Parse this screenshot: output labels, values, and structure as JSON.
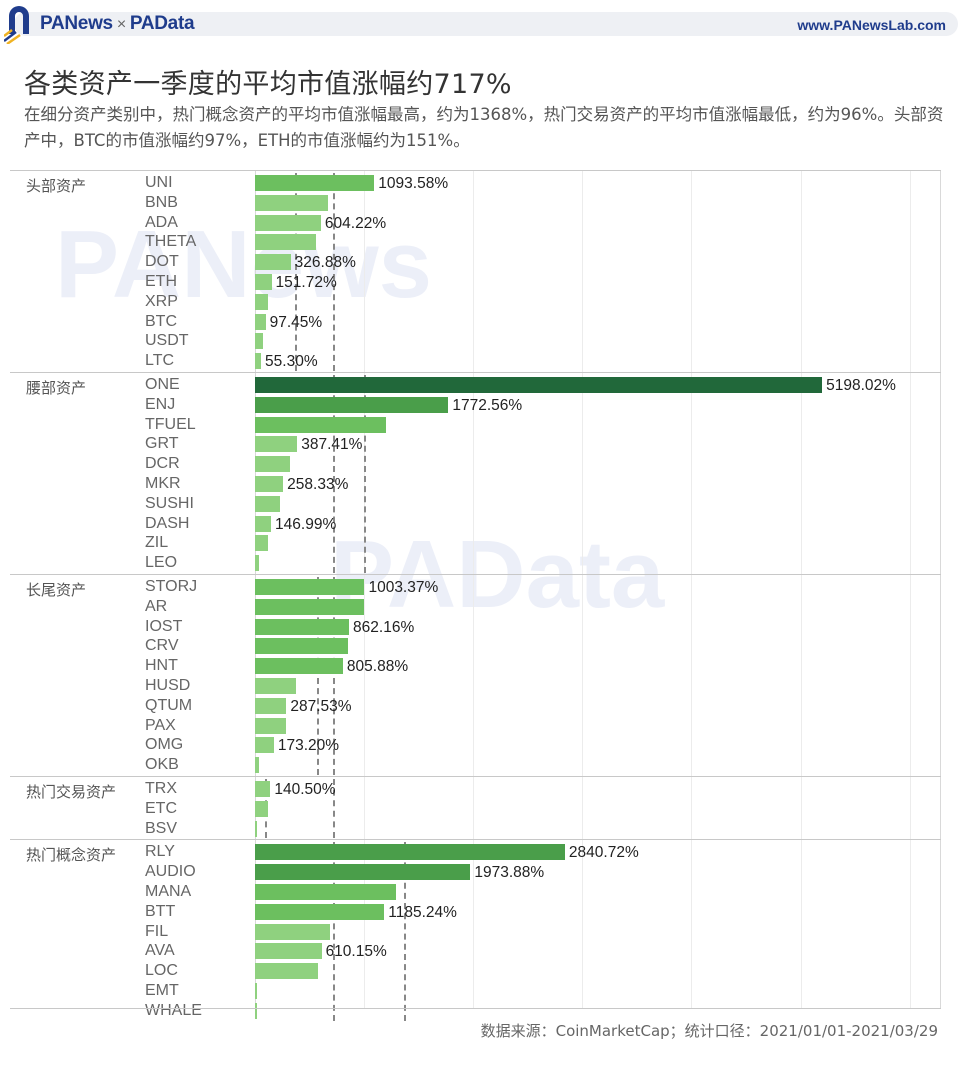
{
  "header": {
    "brand_left": "PANews",
    "brand_sep": "×",
    "brand_right": "PAData",
    "site": "www.PANewsLab.com"
  },
  "title": "各类资产一季度的平均市值涨幅约717%",
  "subtitle": "在细分资产类别中，热门概念资产的平均市值涨幅最高，约为1368%，热门交易资产的平均市值涨幅最低，约为96%。头部资产中，BTC的市值涨幅约97%，ETH的市值涨幅约为151%。",
  "source": "数据来源：CoinMarketCap；统计口径：2021/01/01-2021/03/29",
  "watermarks": [
    "PANews",
    "PAData"
  ],
  "colors": {
    "bar_light": "#8fd17f",
    "bar_mid": "#6cbf5f",
    "bar_dark": "#4a9e4a",
    "bar_darkest": "#21683a",
    "brand_blue": "#1f3c8c"
  },
  "chart_data": {
    "type": "bar",
    "orientation": "horizontal",
    "title": "各类资产一季度的平均市值涨幅约717%",
    "xlabel": "",
    "ylabel": "",
    "unit": "%",
    "xlim": [
      0,
      5900
    ],
    "grid": true,
    "groups": [
      {
        "name": "头部资产",
        "reference_lines": [
          367,
          717
        ],
        "items": [
          {
            "label": "UNI",
            "value": 1093.58,
            "shown_label": "1093.58%"
          },
          {
            "label": "BNB",
            "value": 670,
            "shown_label": ""
          },
          {
            "label": "ADA",
            "value": 604.22,
            "shown_label": "604.22%"
          },
          {
            "label": "THETA",
            "value": 555,
            "shown_label": ""
          },
          {
            "label": "DOT",
            "value": 326.88,
            "shown_label": "326.88%"
          },
          {
            "label": "ETH",
            "value": 151.72,
            "shown_label": "151.72%"
          },
          {
            "label": "XRP",
            "value": 120,
            "shown_label": ""
          },
          {
            "label": "BTC",
            "value": 97.45,
            "shown_label": "97.45%"
          },
          {
            "label": "USDT",
            "value": 75,
            "shown_label": ""
          },
          {
            "label": "LTC",
            "value": 55.3,
            "shown_label": "55.30%"
          }
        ]
      },
      {
        "name": "腰部资产",
        "reference_lines": [
          717,
          1000
        ],
        "items": [
          {
            "label": "ONE",
            "value": 5198.02,
            "shown_label": "5198.02%"
          },
          {
            "label": "ENJ",
            "value": 1772.56,
            "shown_label": "1772.56%"
          },
          {
            "label": "TFUEL",
            "value": 1200,
            "shown_label": ""
          },
          {
            "label": "GRT",
            "value": 387.41,
            "shown_label": "387.41%"
          },
          {
            "label": "DCR",
            "value": 320,
            "shown_label": ""
          },
          {
            "label": "MKR",
            "value": 258.33,
            "shown_label": "258.33%"
          },
          {
            "label": "SUSHI",
            "value": 230,
            "shown_label": ""
          },
          {
            "label": "DASH",
            "value": 146.99,
            "shown_label": "146.99%"
          },
          {
            "label": "ZIL",
            "value": 120,
            "shown_label": ""
          },
          {
            "label": "LEO",
            "value": 40,
            "shown_label": ""
          }
        ]
      },
      {
        "name": "长尾资产",
        "reference_lines": [
          570,
          717
        ],
        "items": [
          {
            "label": "STORJ",
            "value": 1003.37,
            "shown_label": "1003.37%"
          },
          {
            "label": "AR",
            "value": 1000,
            "shown_label": ""
          },
          {
            "label": "IOST",
            "value": 862.16,
            "shown_label": "862.16%"
          },
          {
            "label": "CRV",
            "value": 850,
            "shown_label": ""
          },
          {
            "label": "HNT",
            "value": 805.88,
            "shown_label": "805.88%"
          },
          {
            "label": "HUSD",
            "value": 380,
            "shown_label": ""
          },
          {
            "label": "QTUM",
            "value": 287.53,
            "shown_label": "287.53%"
          },
          {
            "label": "PAX",
            "value": 285,
            "shown_label": ""
          },
          {
            "label": "OMG",
            "value": 173.2,
            "shown_label": "173.20%"
          },
          {
            "label": "OKB",
            "value": 40,
            "shown_label": ""
          }
        ]
      },
      {
        "name": "热门交易资产",
        "reference_lines": [
          96,
          717
        ],
        "items": [
          {
            "label": "TRX",
            "value": 140.5,
            "shown_label": "140.50%"
          },
          {
            "label": "ETC",
            "value": 115,
            "shown_label": ""
          },
          {
            "label": "BSV",
            "value": 20,
            "shown_label": ""
          }
        ]
      },
      {
        "name": "热门概念资产",
        "reference_lines": [
          717,
          1368
        ],
        "items": [
          {
            "label": "RLY",
            "value": 2840.72,
            "shown_label": "2840.72%"
          },
          {
            "label": "AUDIO",
            "value": 1973.88,
            "shown_label": "1973.88%"
          },
          {
            "label": "MANA",
            "value": 1290,
            "shown_label": ""
          },
          {
            "label": "BTT",
            "value": 1185.24,
            "shown_label": "1185.24%"
          },
          {
            "label": "FIL",
            "value": 690,
            "shown_label": ""
          },
          {
            "label": "AVA",
            "value": 610.15,
            "shown_label": "610.15%"
          },
          {
            "label": "LOC",
            "value": 580,
            "shown_label": ""
          },
          {
            "label": "EMT",
            "value": 10,
            "shown_label": ""
          },
          {
            "label": "WHALE",
            "value": 5,
            "shown_label": ""
          }
        ]
      }
    ]
  }
}
